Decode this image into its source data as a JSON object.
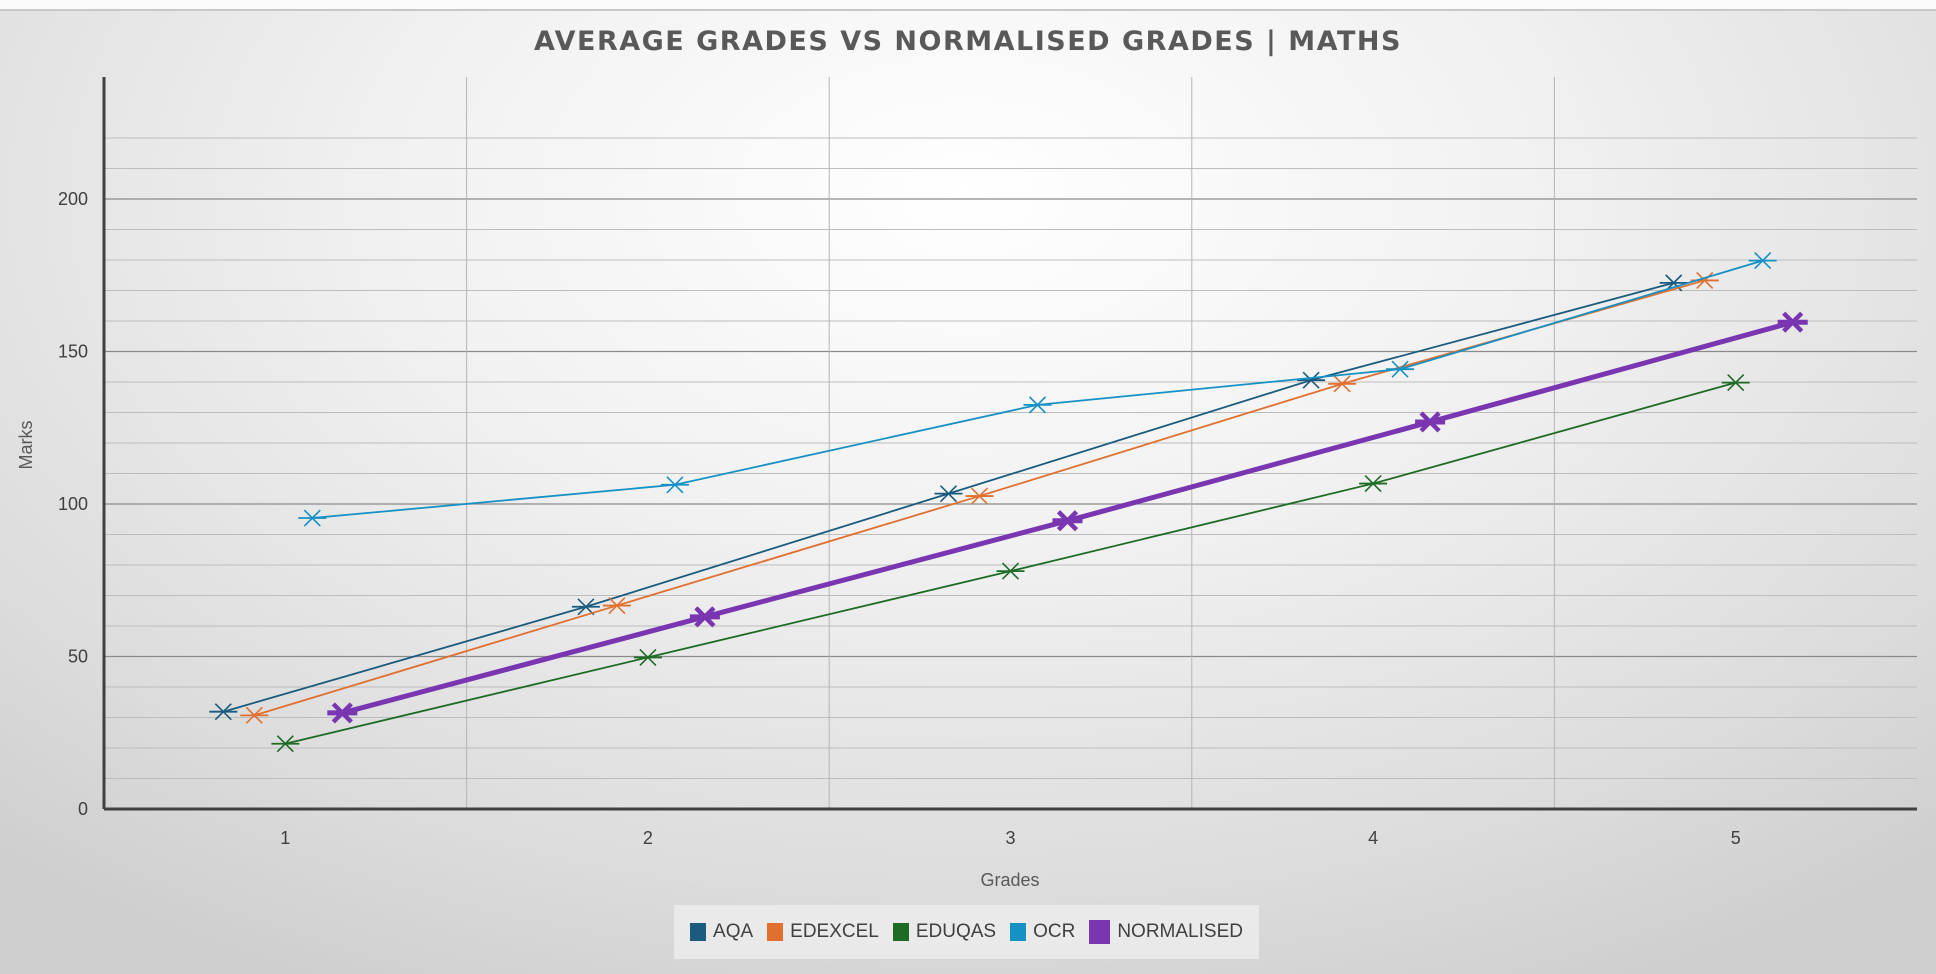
{
  "chart_data": {
    "type": "line",
    "title": "AVERAGE GRADES VS NORMALISED GRADES | MATHS",
    "xlabel": "Grades",
    "ylabel": "Marks",
    "categories": [
      "1",
      "2",
      "3",
      "4",
      "5"
    ],
    "ylim": [
      0,
      240
    ],
    "yticks": [
      0,
      50,
      100,
      150,
      200
    ],
    "grid": true,
    "legend": "bottom",
    "markers": "x",
    "series": [
      {
        "name": "AQA",
        "color": "#1a5b7e",
        "values": [
          31.9,
          66.3,
          103.4,
          140.6,
          172.5
        ]
      },
      {
        "name": "EDEXCEL",
        "color": "#e07030",
        "values": [
          30.7,
          66.7,
          102.6,
          139.4,
          173.3
        ]
      },
      {
        "name": "EDUQAS",
        "color": "#1e6b26",
        "values": [
          21.4,
          49.7,
          78.0,
          106.7,
          139.8
        ]
      },
      {
        "name": "OCR",
        "color": "#1591c4",
        "values": [
          95.4,
          106.3,
          132.5,
          144.2,
          179.8
        ]
      },
      {
        "name": "NORMALISED",
        "color": "#7a35b0",
        "values": [
          31.5,
          63.0,
          94.5,
          126.9,
          159.6
        ]
      }
    ]
  }
}
